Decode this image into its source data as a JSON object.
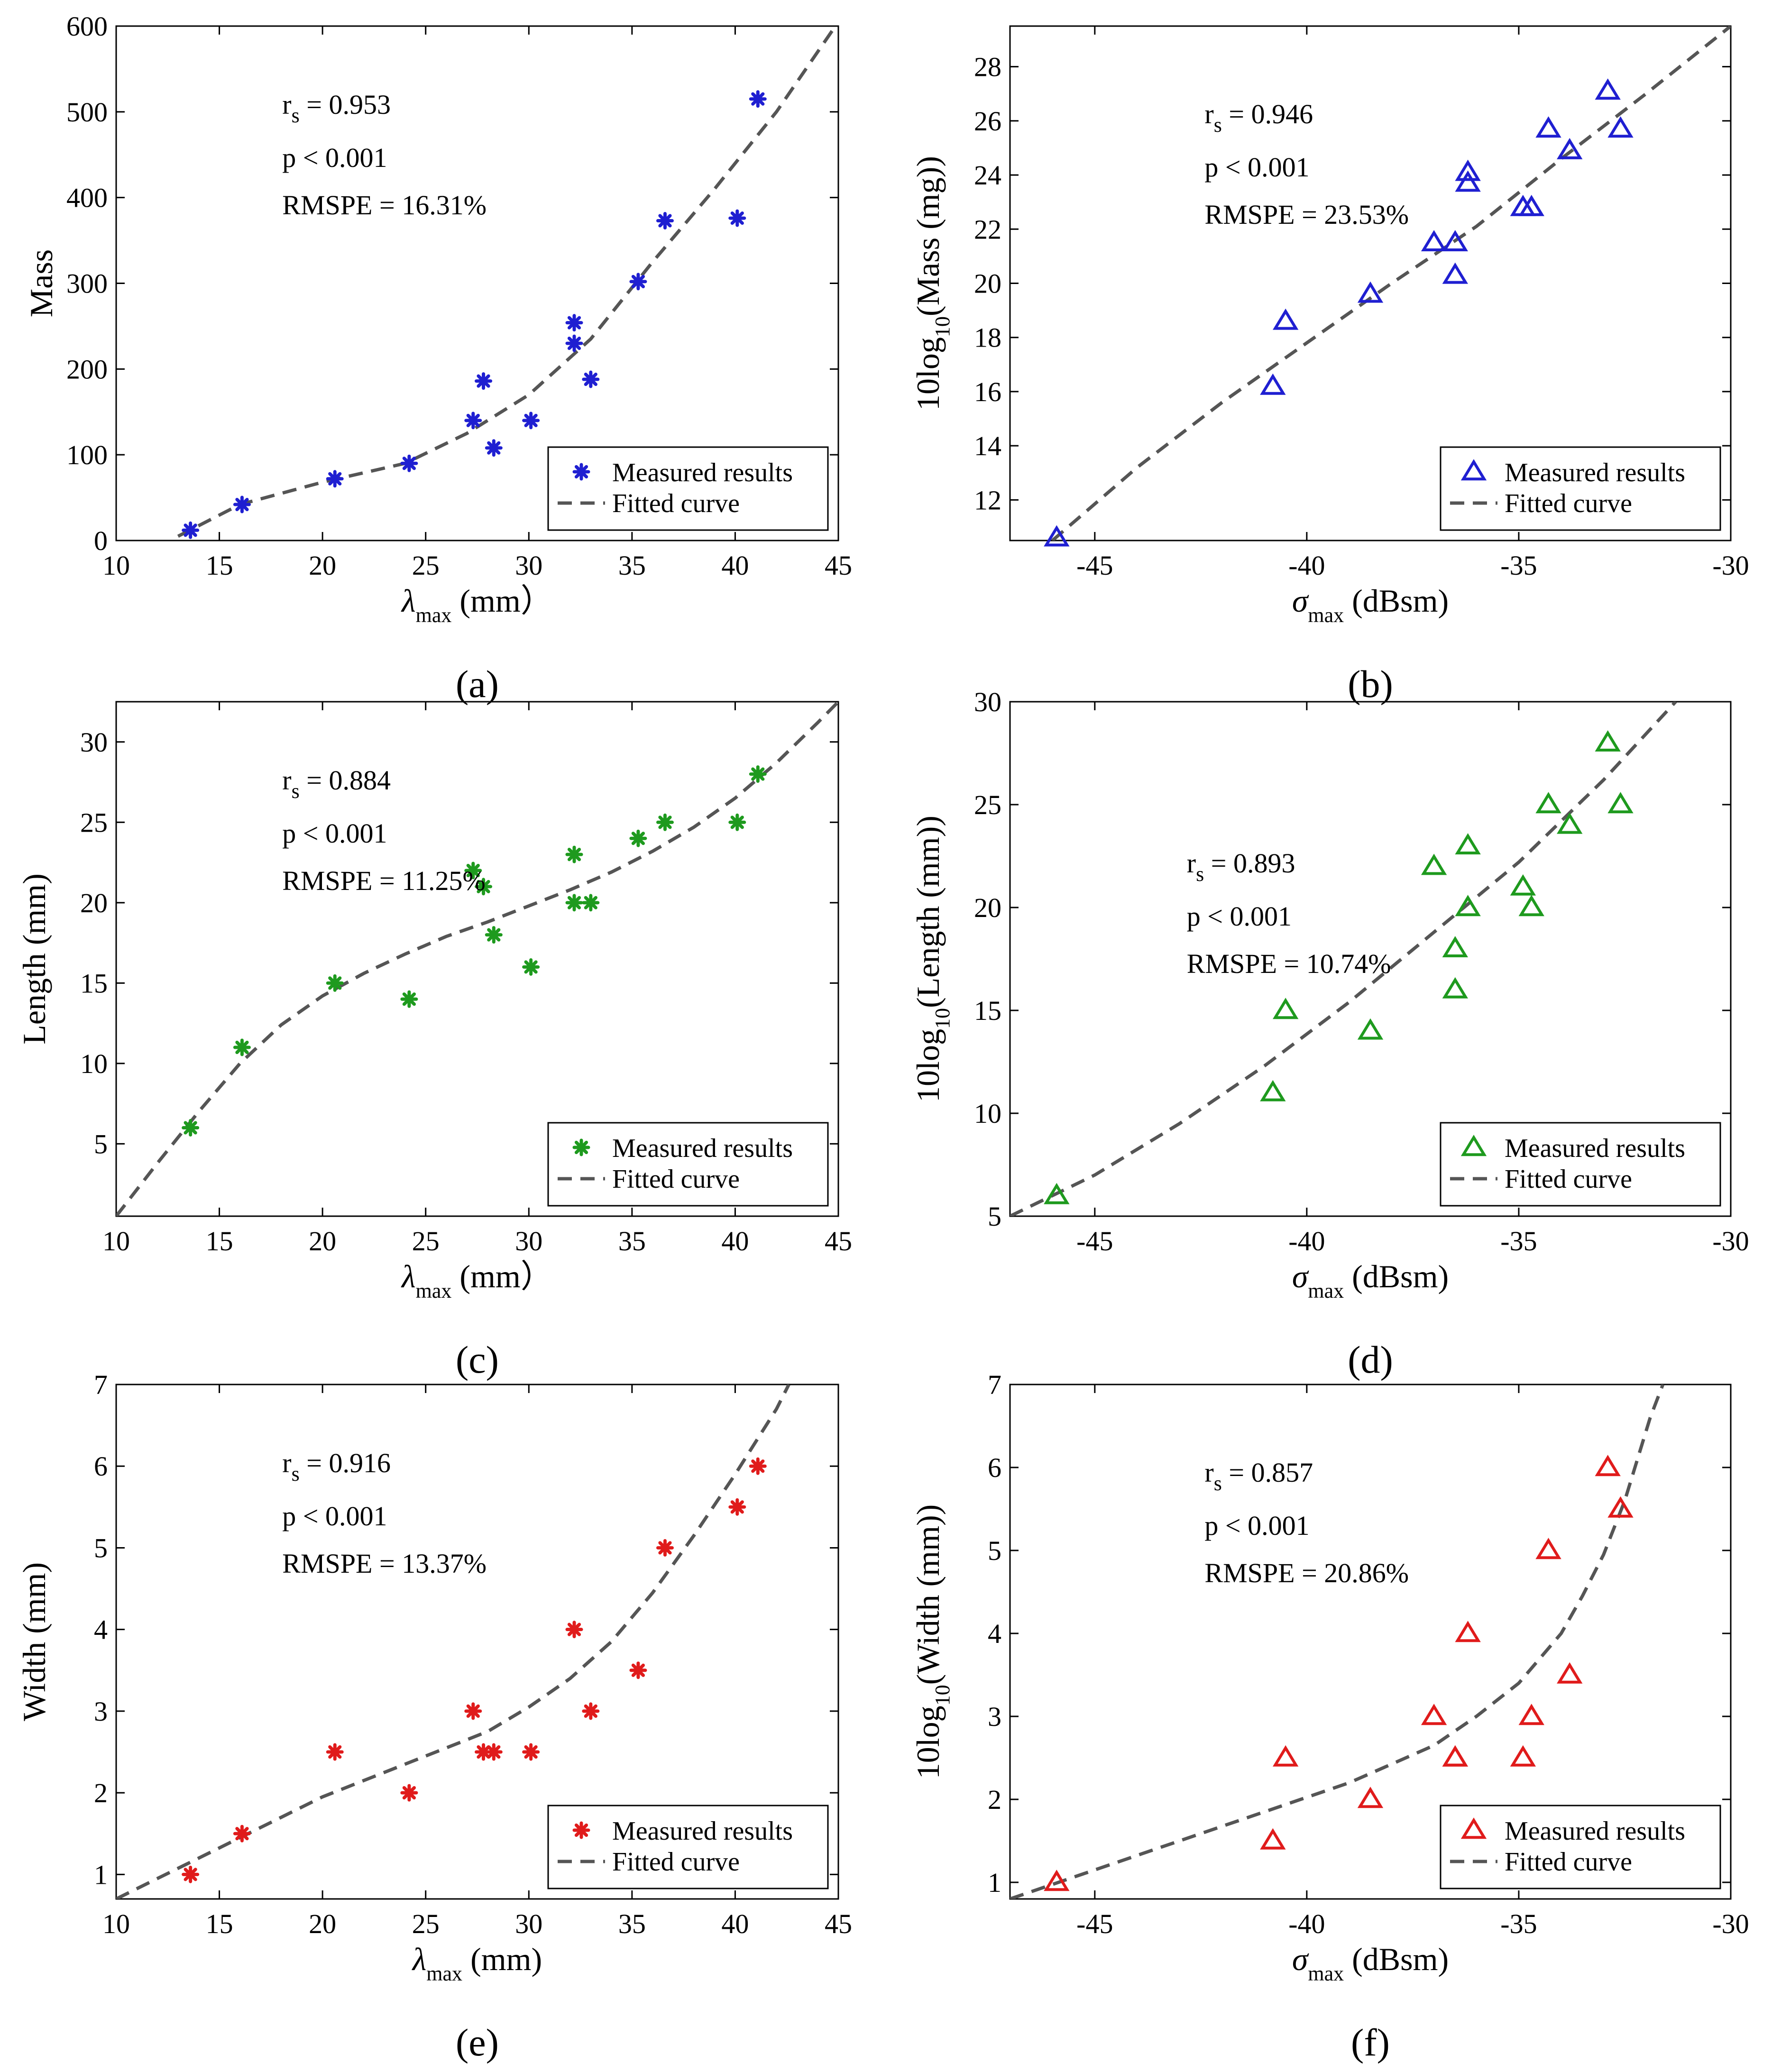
{
  "figure": {
    "background": "#ffffff",
    "fit_color": "#555555"
  },
  "chart_data": [
    {
      "id": "a",
      "type": "scatter",
      "panel_label": "(a)",
      "xlabel": "λ",
      "xlabel_sub": "max",
      "xlabel_unit": " (mm）",
      "ylabel": "Mass",
      "ylabel_pre": "",
      "ylabel_sub": "",
      "ylabel_post": "",
      "xlim": [
        10,
        45
      ],
      "ylim": [
        0,
        600
      ],
      "xticks": [
        10,
        15,
        20,
        25,
        30,
        35,
        40,
        45
      ],
      "yticks": [
        0,
        100,
        200,
        300,
        400,
        500,
        600
      ],
      "tick_labels_x": [
        "10",
        "15",
        "20",
        "25",
        "30",
        "35",
        "40",
        "45"
      ],
      "tick_labels_y": [
        "0",
        "100",
        "200",
        "300",
        "400",
        "500",
        "600"
      ],
      "color": "#1f1fd1",
      "marker": "asterisk",
      "stats": [
        "0.953",
        "p < 0.001",
        "RMSPE = 16.31%"
      ],
      "stats_prefix": "r",
      "stats_sub": "s",
      "stats_eq": " = ",
      "legend": [
        "Measured results",
        "Fitted curve"
      ],
      "legend_loc": "bottom-right",
      "ann_pos": "left",
      "points": {
        "x": [
          13.6,
          16.1,
          20.6,
          24.2,
          27.3,
          27.8,
          28.3,
          30.1,
          32.2,
          32.2,
          33.0,
          35.3,
          36.6,
          40.1,
          41.1
        ],
        "y": [
          12,
          42,
          72,
          90,
          140,
          186,
          108,
          140,
          254,
          230,
          188,
          302,
          373,
          376,
          515
        ]
      },
      "fit": {
        "x": [
          13.0,
          16,
          20,
          24,
          27,
          30,
          33,
          36,
          39,
          42,
          45
        ],
        "y": [
          5,
          42,
          68,
          90,
          125,
          170,
          235,
          325,
          410,
          500,
          605
        ]
      }
    },
    {
      "id": "b",
      "type": "scatter",
      "panel_label": "(b)",
      "xlabel": "σ",
      "xlabel_sub": "max",
      "xlabel_unit": " (dBsm)",
      "ylabel": "",
      "ylabel_pre": "10log",
      "ylabel_sub": "10",
      "ylabel_post": "(Mass (mg))",
      "xlim": [
        -47,
        -30
      ],
      "ylim": [
        10.5,
        29.5
      ],
      "xticks": [
        -45,
        -40,
        -35,
        -30
      ],
      "yticks": [
        12,
        14,
        16,
        18,
        20,
        22,
        24,
        26,
        28
      ],
      "tick_labels_x": [
        "-45",
        "-40",
        "-35",
        "-30"
      ],
      "tick_labels_y": [
        "12",
        "14",
        "16",
        "18",
        "20",
        "22",
        "24",
        "26",
        "28"
      ],
      "color": "#1f1fd1",
      "marker": "triangle",
      "stats": [
        "0.946",
        "p < 0.001",
        "RMSPE = 23.53%"
      ],
      "stats_prefix": "r",
      "stats_sub": "s",
      "stats_eq": " = ",
      "legend": [
        "Measured results",
        "Fitted curve"
      ],
      "legend_loc": "bottom-right",
      "ann_pos": "left-mid",
      "points": {
        "x": [
          -45.9,
          -40.8,
          -40.5,
          -38.5,
          -37.0,
          -36.5,
          -36.5,
          -36.2,
          -36.2,
          -34.9,
          -34.7,
          -34.3,
          -33.8,
          -32.9,
          -32.6
        ],
        "y": [
          10.6,
          16.2,
          18.6,
          19.6,
          21.5,
          21.5,
          20.3,
          24.1,
          23.7,
          22.8,
          22.8,
          25.7,
          24.9,
          27.1,
          25.7
        ]
      },
      "fit": {
        "x": [
          -46.0,
          -44,
          -42,
          -40,
          -38,
          -36,
          -34,
          -32,
          -30
        ],
        "y": [
          10.5,
          13.2,
          15.6,
          17.8,
          20.0,
          22.1,
          24.6,
          27.0,
          29.5
        ]
      }
    },
    {
      "id": "c",
      "type": "scatter",
      "panel_label": "(c)",
      "xlabel": "λ",
      "xlabel_sub": "max",
      "xlabel_unit": " (mm）",
      "ylabel": "Length (mm)",
      "ylabel_pre": "",
      "ylabel_sub": "",
      "ylabel_post": "",
      "xlim": [
        10,
        45
      ],
      "ylim": [
        0.5,
        32.5
      ],
      "xticks": [
        10,
        15,
        20,
        25,
        30,
        35,
        40,
        45
      ],
      "yticks": [
        5,
        10,
        15,
        20,
        25,
        30
      ],
      "tick_labels_x": [
        "10",
        "15",
        "20",
        "25",
        "30",
        "35",
        "40",
        "45"
      ],
      "tick_labels_y": [
        "5",
        "10",
        "15",
        "20",
        "25",
        "30"
      ],
      "color": "#1e9a1e",
      "marker": "asterisk",
      "stats": [
        "0.884",
        "p < 0.001",
        "RMSPE = 11.25%"
      ],
      "stats_prefix": "r",
      "stats_sub": "s",
      "stats_eq": " = ",
      "legend": [
        "Measured results",
        "Fitted curve"
      ],
      "legend_loc": "bottom-right",
      "ann_pos": "left",
      "points": {
        "x": [
          13.6,
          16.1,
          20.6,
          24.2,
          27.3,
          27.8,
          28.3,
          30.1,
          32.2,
          32.2,
          33.0,
          35.3,
          36.6,
          40.1,
          41.1
        ],
        "y": [
          6,
          11,
          15,
          14,
          22,
          21,
          18,
          16,
          23,
          20,
          20,
          24,
          25,
          25,
          28
        ]
      },
      "fit": {
        "x": [
          10,
          12,
          14,
          16,
          18,
          20,
          22,
          24,
          26,
          28,
          30,
          32,
          34,
          36,
          38,
          40,
          42,
          44,
          45
        ],
        "y": [
          0.5,
          3.8,
          7.0,
          10.0,
          12.4,
          14.2,
          15.6,
          16.8,
          17.9,
          18.8,
          19.8,
          20.8,
          21.9,
          23.2,
          24.7,
          26.5,
          28.7,
          31.2,
          32.5
        ]
      }
    },
    {
      "id": "d",
      "type": "scatter",
      "panel_label": "(d)",
      "xlabel": "σ",
      "xlabel_sub": "max",
      "xlabel_unit": " (dBsm)",
      "ylabel": "",
      "ylabel_pre": "10log",
      "ylabel_sub": "10",
      "ylabel_post": "(Length (mm))",
      "xlim": [
        -47,
        -30
      ],
      "ylim": [
        5,
        30
      ],
      "xticks": [
        -45,
        -40,
        -35,
        -30
      ],
      "yticks": [
        5,
        10,
        15,
        20,
        25,
        30
      ],
      "tick_labels_x": [
        "-45",
        "-40",
        "-35",
        "-30"
      ],
      "tick_labels_y": [
        "5",
        "10",
        "15",
        "20",
        "25",
        "30"
      ],
      "color": "#1e9a1e",
      "marker": "triangle",
      "stats": [
        "0.893",
        "p < 0.001",
        "RMSPE = 10.74%"
      ],
      "stats_prefix": "r",
      "stats_sub": "s",
      "stats_eq": " = ",
      "legend": [
        "Measured results",
        "Fitted curve"
      ],
      "legend_loc": "bottom-right",
      "ann_pos": "left-lower",
      "points": {
        "x": [
          -45.9,
          -40.8,
          -40.5,
          -38.5,
          -37.0,
          -36.5,
          -36.5,
          -36.2,
          -36.2,
          -34.9,
          -34.7,
          -34.3,
          -33.8,
          -32.9,
          -32.6
        ],
        "y": [
          6,
          11,
          15,
          14,
          22,
          18,
          16,
          23,
          20,
          21,
          20,
          25,
          24,
          28,
          25
        ]
      },
      "fit": {
        "x": [
          -47,
          -45,
          -43,
          -41,
          -39,
          -37,
          -35,
          -33,
          -31.3
        ],
        "y": [
          5.0,
          7.0,
          9.5,
          12.3,
          15.4,
          18.8,
          22.2,
          26.2,
          30.0
        ]
      }
    },
    {
      "id": "e",
      "type": "scatter",
      "panel_label": "(e)",
      "xlabel": "λ",
      "xlabel_sub": "max",
      "xlabel_unit": " (mm)",
      "ylabel": "Width (mm)",
      "ylabel_pre": "",
      "ylabel_sub": "",
      "ylabel_post": "",
      "xlim": [
        10,
        45
      ],
      "ylim": [
        0.7,
        7
      ],
      "xticks": [
        10,
        15,
        20,
        25,
        30,
        35,
        40,
        45
      ],
      "yticks": [
        1,
        2,
        3,
        4,
        5,
        6,
        7
      ],
      "tick_labels_x": [
        "10",
        "15",
        "20",
        "25",
        "30",
        "35",
        "40",
        "45"
      ],
      "tick_labels_y": [
        "1",
        "2",
        "3",
        "4",
        "5",
        "6",
        "7"
      ],
      "color": "#e01b1b",
      "marker": "asterisk",
      "stats": [
        "0.916",
        "p < 0.001",
        "RMSPE = 13.37%"
      ],
      "stats_prefix": "r",
      "stats_sub": "s",
      "stats_eq": " = ",
      "legend": [
        "Measured results",
        "Fitted curve"
      ],
      "legend_loc": "bottom-right",
      "ann_pos": "left",
      "points": {
        "x": [
          13.6,
          16.1,
          20.6,
          24.2,
          27.3,
          27.8,
          28.3,
          30.1,
          32.2,
          33.0,
          35.3,
          36.6,
          40.1,
          41.1
        ],
        "y": [
          1.0,
          1.5,
          2.5,
          2.0,
          3.0,
          2.5,
          2.5,
          2.5,
          4.0,
          3.0,
          3.5,
          5.0,
          5.5,
          6.0
        ]
      },
      "fit": {
        "x": [
          10,
          12,
          14,
          16,
          18,
          20,
          22,
          24,
          26,
          28,
          30,
          32,
          34,
          36,
          38,
          40,
          42,
          42.6
        ],
        "y": [
          0.7,
          0.95,
          1.2,
          1.45,
          1.7,
          1.95,
          2.15,
          2.35,
          2.55,
          2.75,
          3.05,
          3.4,
          3.85,
          4.45,
          5.15,
          5.9,
          6.7,
          7.0
        ]
      }
    },
    {
      "id": "f",
      "type": "scatter",
      "panel_label": "(f)",
      "xlabel": "σ",
      "xlabel_sub": "max",
      "xlabel_unit": " (dBsm)",
      "ylabel": "",
      "ylabel_pre": "10log",
      "ylabel_sub": "10",
      "ylabel_post": "(Width (mm))",
      "xlim": [
        -47,
        -30
      ],
      "ylim": [
        0.8,
        7
      ],
      "xticks": [
        -45,
        -40,
        -35,
        -30
      ],
      "yticks": [
        1,
        2,
        3,
        4,
        5,
        6,
        7
      ],
      "tick_labels_x": [
        "-45",
        "-40",
        "-35",
        "-30"
      ],
      "tick_labels_y": [
        "1",
        "2",
        "3",
        "4",
        "5",
        "6",
        "7"
      ],
      "color": "#e01b1b",
      "marker": "triangle",
      "stats": [
        "0.857",
        "p < 0.001",
        "RMSPE = 20.86%"
      ],
      "stats_prefix": "r",
      "stats_sub": "s",
      "stats_eq": " = ",
      "legend": [
        "Measured results",
        "Fitted curve"
      ],
      "legend_loc": "bottom-right",
      "ann_pos": "left-mid",
      "points": {
        "x": [
          -45.9,
          -40.8,
          -40.5,
          -38.5,
          -37.0,
          -36.5,
          -36.5,
          -36.2,
          -34.9,
          -34.7,
          -34.3,
          -33.8,
          -32.9,
          -32.6
        ],
        "y": [
          1.0,
          1.5,
          2.5,
          2.0,
          3.0,
          2.5,
          2.5,
          4.0,
          2.5,
          3.0,
          5.0,
          3.5,
          6.0,
          5.5
        ]
      },
      "fit": {
        "x": [
          -47,
          -45,
          -43,
          -41,
          -39,
          -37,
          -36,
          -35,
          -34,
          -33.5,
          -33,
          -32.5,
          -32.2,
          -31.9,
          -31.6
        ],
        "y": [
          0.8,
          1.15,
          1.5,
          1.85,
          2.2,
          2.65,
          3.0,
          3.4,
          4.0,
          4.45,
          4.95,
          5.6,
          6.1,
          6.6,
          7.0
        ]
      }
    }
  ]
}
